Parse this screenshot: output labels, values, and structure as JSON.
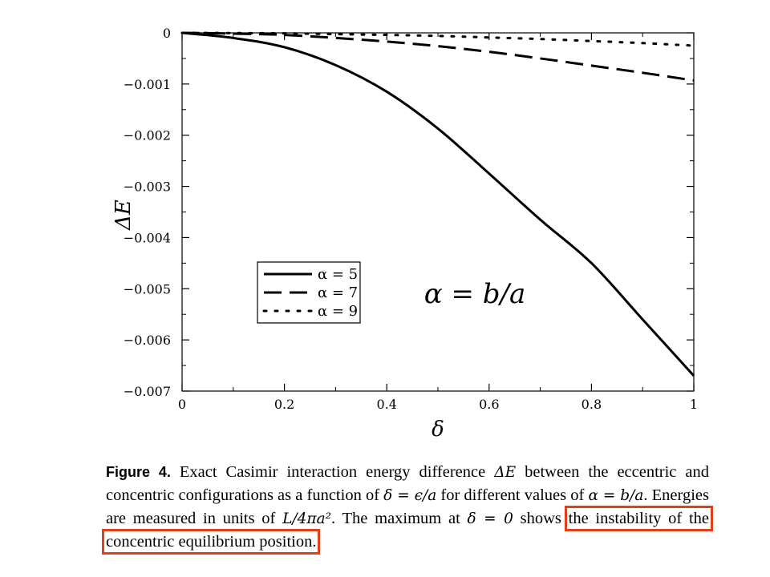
{
  "chart_data": {
    "type": "line",
    "title": "",
    "xlabel": "δ",
    "ylabel": "ΔE",
    "xlim": [
      0,
      1
    ],
    "ylim": [
      -0.007,
      0
    ],
    "xticks": [
      0,
      0.2,
      0.4,
      0.6,
      0.8,
      1
    ],
    "xtick_labels": [
      "0",
      "0.2",
      "0.4",
      "0.6",
      "0.8",
      "1"
    ],
    "yticks": [
      0,
      -0.001,
      -0.002,
      -0.003,
      -0.004,
      -0.005,
      -0.006,
      -0.007
    ],
    "ytick_labels": [
      "0",
      "−0.001",
      "−0.002",
      "−0.003",
      "−0.004",
      "−0.005",
      "−0.006",
      "−0.007"
    ],
    "grid": false,
    "legend_position": "lower-left",
    "annotation": "α = b/a",
    "series": [
      {
        "name": "α = 5",
        "style": "solid",
        "x": [
          0,
          0.1,
          0.2,
          0.3,
          0.4,
          0.5,
          0.6,
          0.7,
          0.8,
          0.9,
          1.0
        ],
        "y": [
          0,
          -0.0001,
          -0.00028,
          -0.00063,
          -0.00115,
          -0.00187,
          -0.00275,
          -0.00365,
          -0.0045,
          -0.0056,
          -0.0067
        ]
      },
      {
        "name": "α = 7",
        "style": "dashed",
        "x": [
          0,
          0.1,
          0.2,
          0.3,
          0.4,
          0.5,
          0.6,
          0.7,
          0.8,
          0.9,
          1.0
        ],
        "y": [
          0,
          -1.5e-05,
          -4e-05,
          -0.0001,
          -0.00017,
          -0.00026,
          -0.00037,
          -0.0005,
          -0.00064,
          -0.00078,
          -0.00093
        ]
      },
      {
        "name": "α = 9",
        "style": "dotted",
        "x": [
          0,
          0.1,
          0.2,
          0.3,
          0.4,
          0.5,
          0.6,
          0.7,
          0.8,
          0.9,
          1.0
        ],
        "y": [
          0,
          -4e-06,
          -1e-05,
          -2.5e-05,
          -4e-05,
          -6e-05,
          -9e-05,
          -0.00012,
          -0.00016,
          -0.0002,
          -0.00025
        ]
      }
    ]
  },
  "caption": {
    "label": "Figure 4.",
    "p1": "Exact Casimir interaction energy difference ",
    "m1": "ΔE",
    "p2": " between the eccentric and concentric configurations as a function of ",
    "m2": "δ = ϵ/a",
    "p3": " for different values of ",
    "m3": "α = b/a",
    "p4": ". Energies are measured in units of ",
    "m4": "L/4πa²",
    "p5": ". The maximum at ",
    "m5": "δ = 0",
    "p6": " shows ",
    "highlight": "the instability of the concentric equilibrium position."
  },
  "colors": {
    "line": "#000000",
    "highlight_box": "#e0401a"
  }
}
